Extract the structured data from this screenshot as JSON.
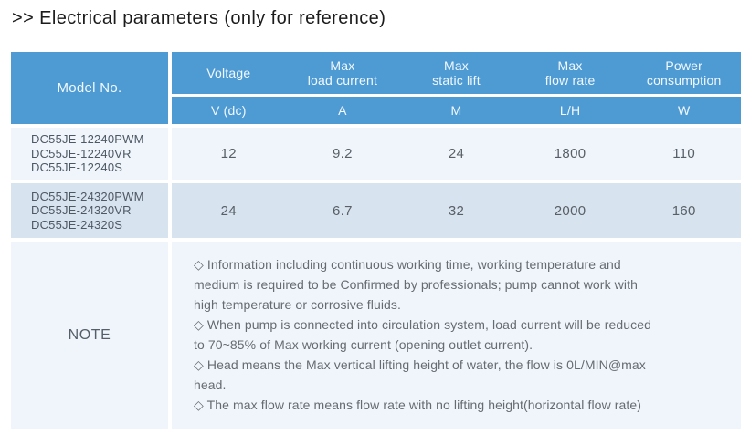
{
  "title": ">> Electrical parameters (only for reference)",
  "colors": {
    "header_blue": "#4E9BD4",
    "row_light": "#EFF5FB",
    "row_shaded": "#D8E3F0",
    "header_text": "#F2F8FD",
    "body_text": "#585f66"
  },
  "table": {
    "model_header": "Model No.",
    "columns": [
      {
        "label_lines": [
          "Voltage"
        ],
        "unit": "V (dc)"
      },
      {
        "label_lines": [
          "Max",
          "load current"
        ],
        "unit": "A"
      },
      {
        "label_lines": [
          "Max",
          "static lift"
        ],
        "unit": "M"
      },
      {
        "label_lines": [
          "Max",
          "flow rate"
        ],
        "unit": "L/H"
      },
      {
        "label_lines": [
          "Power",
          "consumption"
        ],
        "unit": "W"
      }
    ],
    "rows": [
      {
        "models": [
          "DC55JE-12240PWM",
          "DC55JE-12240VR",
          "DC55JE-12240S"
        ],
        "values": [
          "12",
          "9.2",
          "24",
          "1800",
          "110"
        ]
      },
      {
        "models": [
          "DC55JE-24320PWM",
          "DC55JE-24320VR",
          "DC55JE-24320S"
        ],
        "values": [
          "24",
          "6.7",
          "32",
          "2000",
          "160"
        ]
      }
    ],
    "note_label": "NOTE",
    "note_lines": [
      "◇ Information including continuous working time, working temperature and",
      "medium is required to be Confirmed by professionals; pump cannot work with",
      "high temperature or corrosive fluids.",
      "◇ When pump is connected into circulation system, load current will be reduced",
      "to 70~85% of Max working current (opening outlet current).",
      "◇ Head means the Max vertical lifting height of water, the flow is 0L/MIN@max",
      "head.",
      "◇ The max flow rate means flow rate with no lifting height(horizontal flow rate)"
    ]
  }
}
